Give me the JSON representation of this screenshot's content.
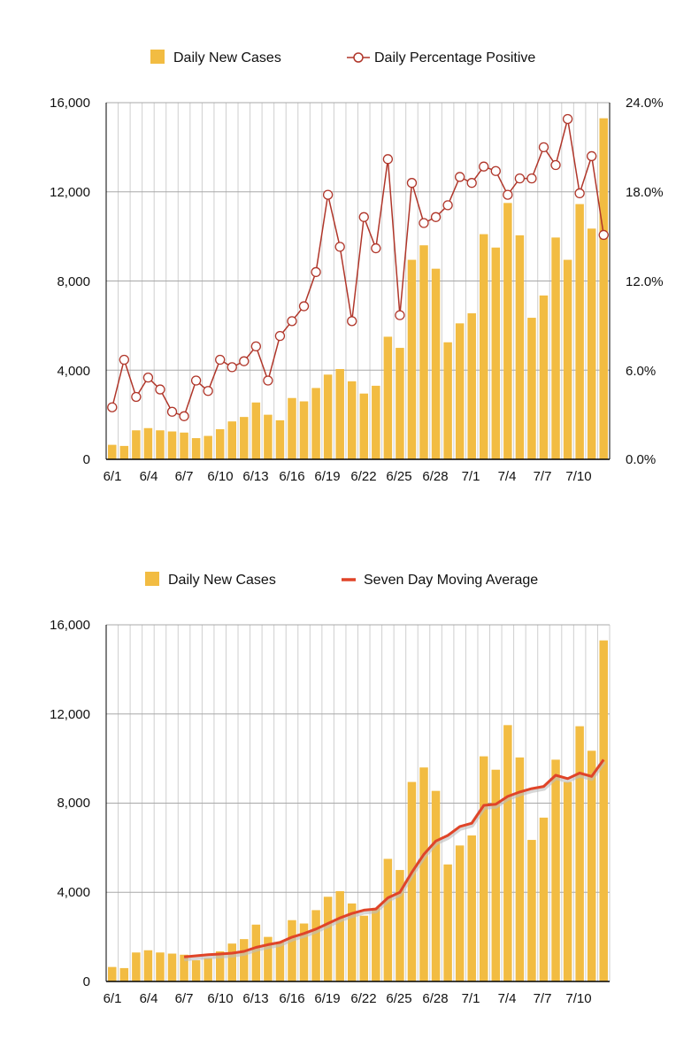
{
  "colors": {
    "bar": "#F2BC42",
    "grid": "#cfcfcf",
    "pct_line": "#B0362A",
    "ma_line": "#E04428",
    "axis": "#000000"
  },
  "chart_data": [
    {
      "type": "bar",
      "title": "",
      "legend": [
        {
          "label": "Daily New Cases",
          "icon": "bar-swatch-icon"
        },
        {
          "label": "Daily Percentage Positive",
          "icon": "circle-line-icon"
        }
      ],
      "legend_position": "top",
      "categories": [
        "6/1",
        "6/2",
        "6/3",
        "6/4",
        "6/5",
        "6/6",
        "6/7",
        "6/8",
        "6/9",
        "6/10",
        "6/11",
        "6/12",
        "6/13",
        "6/14",
        "6/15",
        "6/16",
        "6/17",
        "6/18",
        "6/19",
        "6/20",
        "6/21",
        "6/22",
        "6/23",
        "6/24",
        "6/25",
        "6/26",
        "6/27",
        "6/28",
        "6/29",
        "6/30",
        "7/1",
        "7/2",
        "7/3",
        "7/4",
        "7/5",
        "7/6",
        "7/7",
        "7/8",
        "7/9",
        "7/10",
        "7/11",
        "7/12"
      ],
      "x_tick_labels": [
        "6/1",
        "6/4",
        "6/7",
        "6/10",
        "6/13",
        "6/16",
        "6/19",
        "6/22",
        "6/25",
        "6/28",
        "7/1",
        "7/4",
        "7/7",
        "7/10"
      ],
      "series": [
        {
          "name": "Daily New Cases",
          "axis": "left",
          "values": [
            650,
            600,
            1300,
            1400,
            1300,
            1250,
            1200,
            950,
            1050,
            1350,
            1700,
            1900,
            2550,
            2000,
            1750,
            2750,
            2600,
            3200,
            3800,
            4050,
            3500,
            2950,
            3300,
            5500,
            5000,
            8950,
            9600,
            8550,
            5250,
            6100,
            6550,
            10100,
            9500,
            11500,
            10050,
            6350,
            7350,
            9950,
            8950,
            11450,
            10350,
            15300
          ]
        },
        {
          "name": "Daily Percentage Positive",
          "axis": "right",
          "values": [
            3.5,
            6.7,
            4.2,
            5.5,
            4.7,
            3.2,
            2.9,
            5.3,
            4.6,
            6.7,
            6.2,
            6.6,
            7.6,
            5.3,
            8.3,
            9.3,
            10.3,
            12.6,
            17.8,
            14.3,
            9.3,
            16.3,
            14.2,
            20.2,
            9.7,
            18.6,
            15.9,
            16.3,
            17.1,
            19.0,
            18.6,
            19.7,
            19.4,
            17.8,
            18.9,
            18.9,
            21.0,
            19.8,
            22.9,
            17.9,
            20.4,
            15.1
          ]
        }
      ],
      "y_left": {
        "min": 0,
        "max": 16000,
        "ticks": [
          "0",
          "4,000",
          "8,000",
          "12,000",
          "16,000"
        ]
      },
      "y_right": {
        "min": 0,
        "max": 24,
        "ticks": [
          "0.0%",
          "6.0%",
          "12.0%",
          "18.0%",
          "24.0%"
        ]
      },
      "grid": true
    },
    {
      "type": "bar",
      "title": "",
      "legend": [
        {
          "label": "Daily New Cases",
          "icon": "bar-swatch-icon"
        },
        {
          "label": "Seven Day Moving Average",
          "icon": "line-swatch-icon"
        }
      ],
      "legend_position": "top",
      "categories": [
        "6/1",
        "6/2",
        "6/3",
        "6/4",
        "6/5",
        "6/6",
        "6/7",
        "6/8",
        "6/9",
        "6/10",
        "6/11",
        "6/12",
        "6/13",
        "6/14",
        "6/15",
        "6/16",
        "6/17",
        "6/18",
        "6/19",
        "6/20",
        "6/21",
        "6/22",
        "6/23",
        "6/24",
        "6/25",
        "6/26",
        "6/27",
        "6/28",
        "6/29",
        "6/30",
        "7/1",
        "7/2",
        "7/3",
        "7/4",
        "7/5",
        "7/6",
        "7/7",
        "7/8",
        "7/9",
        "7/10",
        "7/11",
        "7/12"
      ],
      "x_tick_labels": [
        "6/1",
        "6/4",
        "6/7",
        "6/10",
        "6/13",
        "6/16",
        "6/19",
        "6/22",
        "6/25",
        "6/28",
        "7/1",
        "7/4",
        "7/7",
        "7/10"
      ],
      "series": [
        {
          "name": "Daily New Cases",
          "values": [
            650,
            600,
            1300,
            1400,
            1300,
            1250,
            1200,
            950,
            1050,
            1350,
            1700,
            1900,
            2550,
            2000,
            1750,
            2750,
            2600,
            3200,
            3800,
            4050,
            3500,
            2950,
            3300,
            5500,
            5000,
            8950,
            9600,
            8550,
            5250,
            6100,
            6550,
            10100,
            9500,
            11500,
            10050,
            6350,
            7350,
            9950,
            8950,
            11450,
            10350,
            15300
          ]
        },
        {
          "name": "Seven Day Moving Average",
          "values": [
            null,
            null,
            null,
            null,
            null,
            null,
            1100,
            1150,
            1200,
            1230,
            1270,
            1350,
            1530,
            1650,
            1750,
            1990,
            2150,
            2350,
            2600,
            2850,
            3050,
            3200,
            3250,
            3750,
            4000,
            4900,
            5700,
            6300,
            6550,
            6950,
            7100,
            7900,
            7950,
            8300,
            8500,
            8650,
            8750,
            9250,
            9100,
            9350,
            9200,
            9950
          ]
        }
      ],
      "y_left": {
        "min": 0,
        "max": 16000,
        "ticks": [
          "0",
          "4,000",
          "8,000",
          "12,000",
          "16,000"
        ]
      },
      "grid": true
    }
  ]
}
